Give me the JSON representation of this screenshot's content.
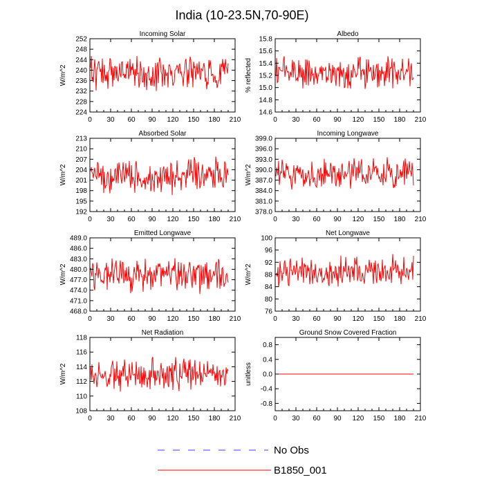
{
  "figure": {
    "title": "India (10-23.5N,70-90E)",
    "legend": [
      {
        "label": "No Obs",
        "color": "#3b3bff",
        "style": "dashed"
      },
      {
        "label": "B1850_001",
        "color": "#ff0000",
        "style": "solid"
      }
    ]
  },
  "chart_data": [
    {
      "type": "line",
      "title": "Incoming Solar",
      "ylabel": "W/m^2",
      "xlim": [
        0,
        210
      ],
      "ylim": [
        224,
        252
      ],
      "xticks": [
        0,
        30,
        60,
        90,
        120,
        150,
        180,
        210
      ],
      "yticks": [
        "224",
        "228",
        "232",
        "236",
        "240",
        "244",
        "248",
        "252"
      ],
      "series": [
        {
          "name": "B1850_001",
          "color": "#ff0000",
          "n": 200,
          "mean": 239,
          "amp": 4.5,
          "seed": 1,
          "trend": 0.004
        }
      ]
    },
    {
      "type": "line",
      "title": "Albedo",
      "ylabel": "% reflected",
      "xlim": [
        0,
        210
      ],
      "ylim": [
        14.6,
        15.8
      ],
      "xticks": [
        0,
        30,
        60,
        90,
        120,
        150,
        180,
        210
      ],
      "yticks": [
        "14.6",
        "14.8",
        "15.0",
        "15.2",
        "15.4",
        "15.6",
        "15.8"
      ],
      "series": [
        {
          "name": "B1850_001",
          "color": "#ff0000",
          "n": 200,
          "mean": 15.25,
          "amp": 0.2,
          "seed": 2,
          "trend": 0
        }
      ]
    },
    {
      "type": "line",
      "title": "Absorbed Solar",
      "ylabel": "W/m^2",
      "xlim": [
        0,
        210
      ],
      "ylim": [
        192,
        213
      ],
      "xticks": [
        0,
        30,
        60,
        90,
        120,
        150,
        180,
        210
      ],
      "yticks": [
        "192",
        "195",
        "198",
        "201",
        "204",
        "207",
        "210",
        "213"
      ],
      "series": [
        {
          "name": "B1850_001",
          "color": "#ff0000",
          "n": 200,
          "mean": 202,
          "amp": 3.6,
          "seed": 3,
          "trend": 0.003
        }
      ]
    },
    {
      "type": "line",
      "title": "Incoming Longwave",
      "ylabel": "W/m^2",
      "xlim": [
        0,
        210
      ],
      "ylim": [
        378,
        399
      ],
      "xticks": [
        0,
        30,
        60,
        90,
        120,
        150,
        180,
        210
      ],
      "yticks": [
        "378.0",
        "381.0",
        "384.0",
        "387.0",
        "390.0",
        "393.0",
        "396.0",
        "399.0"
      ],
      "series": [
        {
          "name": "B1850_001",
          "color": "#ff0000",
          "n": 200,
          "mean": 389,
          "amp": 3.2,
          "seed": 4,
          "trend": 0
        }
      ]
    },
    {
      "type": "line",
      "title": "Emitted Longwave",
      "ylabel": "W/m^2",
      "xlim": [
        0,
        210
      ],
      "ylim": [
        468,
        489
      ],
      "xticks": [
        0,
        30,
        60,
        90,
        120,
        150,
        180,
        210
      ],
      "yticks": [
        "468.0",
        "471.0",
        "474.0",
        "477.0",
        "480.0",
        "483.0",
        "486.0",
        "489.0"
      ],
      "series": [
        {
          "name": "B1850_001",
          "color": "#ff0000",
          "n": 200,
          "mean": 478.5,
          "amp": 3.6,
          "seed": 5,
          "trend": 0
        }
      ]
    },
    {
      "type": "line",
      "title": "Net Longwave",
      "ylabel": "W/m^2",
      "xlim": [
        0,
        210
      ],
      "ylim": [
        76,
        100
      ],
      "xticks": [
        0,
        30,
        60,
        90,
        120,
        150,
        180,
        210
      ],
      "yticks": [
        "76",
        "80",
        "84",
        "88",
        "92",
        "96",
        "100"
      ],
      "series": [
        {
          "name": "B1850_001",
          "color": "#ff0000",
          "n": 200,
          "mean": 89,
          "amp": 3.6,
          "seed": 6,
          "trend": 0
        }
      ]
    },
    {
      "type": "line",
      "title": "Net Radiation",
      "ylabel": "W/m^2",
      "xlim": [
        0,
        210
      ],
      "ylim": [
        108,
        118
      ],
      "xticks": [
        0,
        30,
        60,
        90,
        120,
        150,
        180,
        210
      ],
      "yticks": [
        "108",
        "110",
        "112",
        "114",
        "116",
        "118"
      ],
      "series": [
        {
          "name": "B1850_001",
          "color": "#ff0000",
          "n": 200,
          "mean": 113,
          "amp": 1.6,
          "seed": 7,
          "trend": 0
        }
      ]
    },
    {
      "type": "line",
      "title": "Ground Snow Covered Fraction",
      "ylabel": "unitless",
      "xlim": [
        0,
        210
      ],
      "ylim": [
        -1,
        1
      ],
      "xticks": [
        0,
        30,
        60,
        90,
        120,
        150,
        180,
        210
      ],
      "yticks": [
        "-0.8",
        "-0.4",
        "0.0",
        "0.4",
        "0.8"
      ],
      "ytick_values": [
        -0.8,
        -0.4,
        0.0,
        0.4,
        0.8
      ],
      "series": [
        {
          "name": "B1850_001",
          "color": "#ff0000",
          "n": 200,
          "mean": 0,
          "amp": 0,
          "seed": 8,
          "trend": 0
        }
      ]
    }
  ]
}
